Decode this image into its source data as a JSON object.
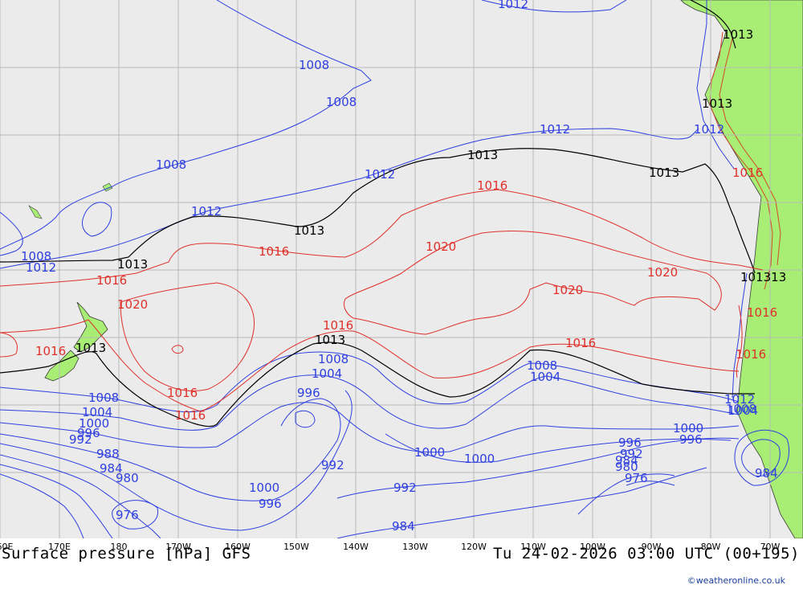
{
  "title": "Surface pressure [hPa] GFS",
  "valid_time": "Tu 24-02-2026 03:00 UTC (00+195)",
  "credit": "©weatheronline.co.uk",
  "colors": {
    "ocean": "#ebebeb",
    "land": "#a8ee74",
    "grid": "#b8b8b8",
    "isobar_low": "#2f3fe0",
    "isobar_mean": "#000000",
    "isobar_high": "#e0302a"
  },
  "longitude_labels": [
    "60E",
    "170E",
    "180",
    "170W",
    "160W",
    "150W",
    "140W",
    "130W",
    "120W",
    "110W",
    "100W",
    "90W",
    "80W",
    "70W"
  ],
  "isobar_labels": {
    "blue": [
      "1012",
      "1008",
      "1008",
      "1008",
      "1012",
      "1012",
      "1012",
      "1008",
      "1012",
      "1012",
      "1008",
      "1004",
      "996",
      "1004",
      "1000",
      "1008",
      "1004",
      "1000",
      "996",
      "992",
      "988",
      "984",
      "980",
      "976",
      "992",
      "1000",
      "996",
      "992",
      "984",
      "1000",
      "996",
      "1008",
      "1004",
      "1000",
      "996",
      "992",
      "980",
      "984",
      "976",
      "984",
      "1012",
      "1008"
    ],
    "black": [
      "1013",
      "1013",
      "1013",
      "1013",
      "1013",
      "1013",
      "1013",
      "1013",
      "101313"
    ],
    "red": [
      "1016",
      "1016",
      "1020",
      "1016",
      "1020",
      "1016",
      "1020",
      "1016",
      "1020",
      "1016",
      "1016",
      "1016",
      "1016",
      "1016",
      "1016"
    ]
  }
}
